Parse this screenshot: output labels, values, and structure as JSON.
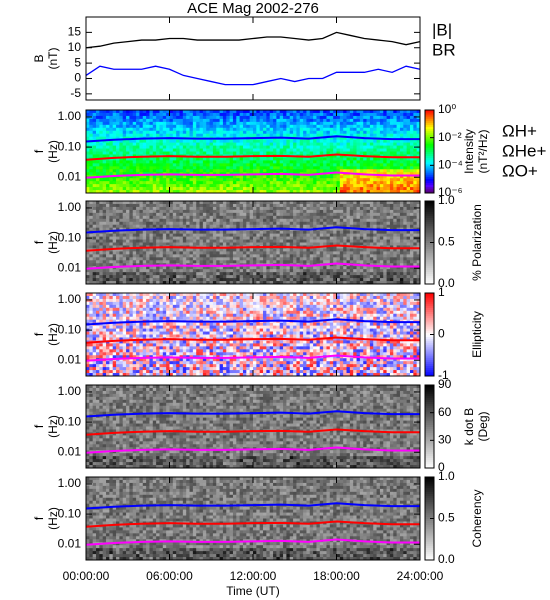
{
  "chart_data": [
    {
      "type": "line",
      "title": "ACE Mag 2002-276",
      "ylabel": [
        "B",
        "(nT)"
      ],
      "x": [
        0,
        1,
        2,
        3,
        4,
        5,
        6,
        7,
        8,
        9,
        10,
        11,
        12,
        13,
        14,
        15,
        16,
        17,
        18,
        19,
        20,
        21,
        22,
        23,
        24
      ],
      "xlim": [
        0,
        24
      ],
      "ylim": [
        -7,
        20
      ],
      "yticks": [
        -5,
        0,
        5,
        10,
        15
      ],
      "series": [
        {
          "name": "|B|",
          "color": "#000000",
          "values": [
            10,
            10.5,
            11.5,
            12,
            12.5,
            12.5,
            13,
            13,
            12.5,
            12.5,
            12.5,
            12.5,
            13,
            13.5,
            13.5,
            13,
            12.5,
            13,
            15,
            14,
            13,
            12.5,
            12,
            11,
            12
          ]
        },
        {
          "name": "BR",
          "color": "#0000ff",
          "values": [
            1,
            4,
            3,
            3,
            3,
            4,
            3,
            1,
            0,
            -1,
            -2,
            -2,
            -2,
            -1,
            0,
            -1,
            0,
            0,
            2,
            2,
            2,
            3,
            2,
            4,
            3
          ]
        }
      ]
    },
    {
      "type": "spectrogram",
      "ylabel": [
        "f",
        "(Hz)"
      ],
      "log_y": true,
      "legend": true,
      "x": [
        0,
        2,
        4,
        6,
        8,
        10,
        12,
        14,
        16,
        18,
        20,
        22,
        24
      ],
      "xlim": [
        0,
        24
      ],
      "ylim": [
        0.003,
        1.7
      ],
      "yticks": [
        {
          "value": 1,
          "label": "1.00"
        },
        {
          "value": 0.1,
          "label": "0.10"
        },
        {
          "value": 0.01,
          "label": "0.01"
        }
      ],
      "colormap": "rainbow",
      "clog": true,
      "clim": [
        1e-06,
        1
      ],
      "clabel": [
        "Intensity",
        "(nT²/Hz)"
      ],
      "cticks": [
        {
          "value": 1,
          "label": "10⁰"
        },
        {
          "value": 0.01,
          "label": "10⁻²"
        },
        {
          "value": 0.0001,
          "label": "10⁻⁴"
        },
        {
          "value": 1e-06,
          "label": "10⁻⁶"
        }
      ],
      "series": [
        {
          "name": "ΩH+",
          "color": "#0000ff",
          "values": [
            0.153,
            0.175,
            0.191,
            0.198,
            0.191,
            0.191,
            0.198,
            0.206,
            0.191,
            0.229,
            0.198,
            0.183,
            0.183
          ]
        },
        {
          "name": "ΩHe+",
          "color": "#ff0000",
          "values": [
            0.038,
            0.044,
            0.048,
            0.05,
            0.048,
            0.048,
            0.05,
            0.051,
            0.048,
            0.057,
            0.05,
            0.046,
            0.046
          ]
        },
        {
          "name": "ΩO+",
          "color": "#ff00ff",
          "values": [
            0.0096,
            0.011,
            0.012,
            0.0124,
            0.012,
            0.012,
            0.0124,
            0.0129,
            0.012,
            0.0143,
            0.0124,
            0.0114,
            0.0114
          ]
        }
      ]
    },
    {
      "type": "spectrogram",
      "ylabel": [
        "f",
        "(Hz)"
      ],
      "log_y": true,
      "x": [
        0,
        2,
        4,
        6,
        8,
        10,
        12,
        14,
        16,
        18,
        20,
        22,
        24
      ],
      "xlim": [
        0,
        24
      ],
      "ylim": [
        0.003,
        1.7
      ],
      "yticks": [
        {
          "value": 1,
          "label": "1.00"
        },
        {
          "value": 0.1,
          "label": "0.10"
        },
        {
          "value": 0.01,
          "label": "0.01"
        }
      ],
      "colormap": "gray",
      "clim": [
        0,
        1
      ],
      "clabel": [
        "% Polarization"
      ],
      "cticks": [
        {
          "value": 0,
          "label": "0.0"
        },
        {
          "value": 0.5,
          "label": "0.5"
        },
        {
          "value": 1,
          "label": "1.0"
        }
      ],
      "series": [
        {
          "color": "#0000ff",
          "values": [
            0.153,
            0.175,
            0.191,
            0.198,
            0.191,
            0.191,
            0.198,
            0.206,
            0.191,
            0.229,
            0.198,
            0.183,
            0.183
          ]
        },
        {
          "color": "#ff0000",
          "values": [
            0.038,
            0.044,
            0.048,
            0.05,
            0.048,
            0.048,
            0.05,
            0.051,
            0.048,
            0.057,
            0.05,
            0.046,
            0.046
          ]
        },
        {
          "color": "#ff00ff",
          "values": [
            0.0096,
            0.011,
            0.012,
            0.0124,
            0.012,
            0.012,
            0.0124,
            0.0129,
            0.012,
            0.0143,
            0.0124,
            0.0114,
            0.0114
          ]
        }
      ]
    },
    {
      "type": "spectrogram",
      "ylabel": [
        "f",
        "(Hz)"
      ],
      "log_y": true,
      "x": [
        0,
        2,
        4,
        6,
        8,
        10,
        12,
        14,
        16,
        18,
        20,
        22,
        24
      ],
      "xlim": [
        0,
        24
      ],
      "ylim": [
        0.003,
        1.7
      ],
      "yticks": [
        {
          "value": 1,
          "label": "1.00"
        },
        {
          "value": 0.1,
          "label": "0.10"
        },
        {
          "value": 0.01,
          "label": "0.01"
        }
      ],
      "colormap": "bwr",
      "clim": [
        -1,
        1
      ],
      "clabel": [
        "Ellipticity"
      ],
      "cticks": [
        -1,
        0,
        1
      ],
      "series": [
        {
          "color": "#0000ff",
          "values": [
            0.153,
            0.175,
            0.191,
            0.198,
            0.191,
            0.191,
            0.198,
            0.206,
            0.191,
            0.229,
            0.198,
            0.183,
            0.183
          ]
        },
        {
          "color": "#ff0000",
          "values": [
            0.038,
            0.044,
            0.048,
            0.05,
            0.048,
            0.048,
            0.05,
            0.051,
            0.048,
            0.057,
            0.05,
            0.046,
            0.046
          ]
        },
        {
          "color": "#ff00ff",
          "values": [
            0.0096,
            0.011,
            0.012,
            0.0124,
            0.012,
            0.012,
            0.0124,
            0.0129,
            0.012,
            0.0143,
            0.0124,
            0.0114,
            0.0114
          ]
        }
      ]
    },
    {
      "type": "spectrogram",
      "ylabel": [
        "f",
        "(Hz)"
      ],
      "log_y": true,
      "x": [
        0,
        2,
        4,
        6,
        8,
        10,
        12,
        14,
        16,
        18,
        20,
        22,
        24
      ],
      "xlim": [
        0,
        24
      ],
      "ylim": [
        0.003,
        1.7
      ],
      "yticks": [
        {
          "value": 1,
          "label": "1.00"
        },
        {
          "value": 0.1,
          "label": "0.10"
        },
        {
          "value": 0.01,
          "label": "0.01"
        }
      ],
      "colormap": "gray",
      "clim": [
        0,
        90
      ],
      "clabel": [
        "k dot B",
        "(Deg)"
      ],
      "cticks": [
        0,
        30,
        60,
        90
      ],
      "series": [
        {
          "color": "#0000ff",
          "values": [
            0.153,
            0.175,
            0.191,
            0.198,
            0.191,
            0.191,
            0.198,
            0.206,
            0.191,
            0.229,
            0.198,
            0.183,
            0.183
          ]
        },
        {
          "color": "#ff0000",
          "values": [
            0.038,
            0.044,
            0.048,
            0.05,
            0.048,
            0.048,
            0.05,
            0.051,
            0.048,
            0.057,
            0.05,
            0.046,
            0.046
          ]
        },
        {
          "color": "#ff00ff",
          "values": [
            0.0096,
            0.011,
            0.012,
            0.0124,
            0.012,
            0.012,
            0.0124,
            0.0129,
            0.012,
            0.0143,
            0.0124,
            0.0114,
            0.0114
          ]
        }
      ]
    },
    {
      "type": "spectrogram",
      "ylabel": [
        "f",
        "(Hz)"
      ],
      "log_y": true,
      "x": [
        0,
        2,
        4,
        6,
        8,
        10,
        12,
        14,
        16,
        18,
        20,
        22,
        24
      ],
      "xlim": [
        0,
        24
      ],
      "ylim": [
        0.003,
        1.7
      ],
      "yticks": [
        {
          "value": 1,
          "label": "1.00"
        },
        {
          "value": 0.1,
          "label": "0.10"
        },
        {
          "value": 0.01,
          "label": "0.01"
        }
      ],
      "colormap": "gray",
      "clim": [
        0,
        1
      ],
      "clabel": [
        "Coherency"
      ],
      "cticks": [
        {
          "value": 0,
          "label": "0.0"
        },
        {
          "value": 0.5,
          "label": "0.5"
        },
        {
          "value": 1,
          "label": "1.0"
        }
      ],
      "xticks": [
        {
          "value": 0,
          "label": "00:00:00"
        },
        {
          "value": 6,
          "label": "06:00:00"
        },
        {
          "value": 12,
          "label": "12:00:00"
        },
        {
          "value": 18,
          "label": "18:00:00"
        },
        {
          "value": 24,
          "label": "24:00:00"
        }
      ],
      "xlabel": "Time (UT)",
      "series": [
        {
          "color": "#0000ff",
          "values": [
            0.153,
            0.175,
            0.191,
            0.198,
            0.191,
            0.191,
            0.198,
            0.206,
            0.191,
            0.229,
            0.198,
            0.183,
            0.183
          ]
        },
        {
          "color": "#ff0000",
          "values": [
            0.038,
            0.044,
            0.048,
            0.05,
            0.048,
            0.048,
            0.05,
            0.051,
            0.048,
            0.057,
            0.05,
            0.046,
            0.046
          ]
        },
        {
          "color": "#ff00ff",
          "values": [
            0.0096,
            0.011,
            0.012,
            0.0124,
            0.012,
            0.012,
            0.0124,
            0.0129,
            0.012,
            0.0143,
            0.0124,
            0.0114,
            0.0114
          ]
        }
      ]
    }
  ]
}
